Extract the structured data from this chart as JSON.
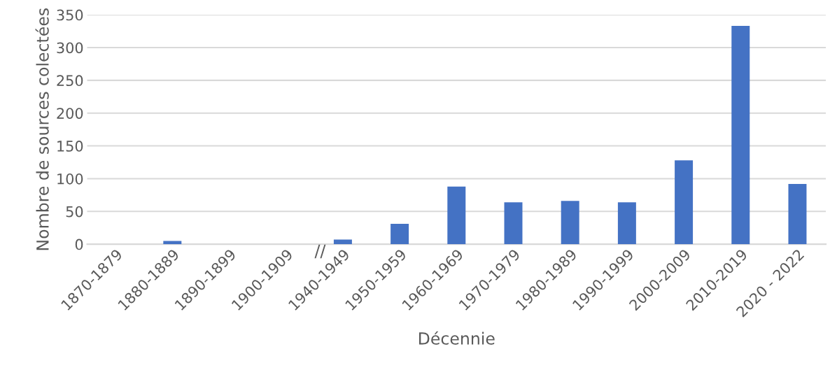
{
  "chart_data": {
    "type": "bar",
    "xlabel": "Décennie",
    "ylabel": "Nombre de sources colectées",
    "categories": [
      "1870-1879",
      "1880-1889",
      "1890-1899",
      "1900-1909",
      "1940-1949",
      "1950-1959",
      "1960-1969",
      "1970-1979",
      "1980-1989",
      "1990-1999",
      "2000-2009",
      "2010-2019",
      "2020 - 2022"
    ],
    "values": [
      0,
      5,
      0,
      0,
      7,
      31,
      88,
      64,
      66,
      64,
      128,
      333,
      92
    ],
    "color": "#4472c4",
    "ylim": [
      0,
      350
    ],
    "yticks": [
      0,
      50,
      100,
      150,
      200,
      250,
      300,
      350
    ],
    "grid": "y",
    "annotations": [
      "//"
    ]
  }
}
